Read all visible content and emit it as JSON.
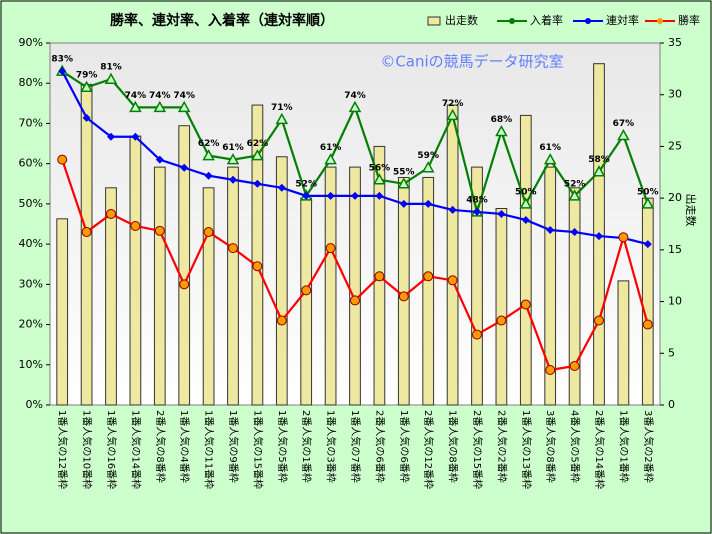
{
  "chart_data": {
    "type": "combo",
    "title": "勝率、連対率、入着率（連対率順）",
    "watermark": "©Caniの競馬データ研究室",
    "y2_label": "出走数",
    "categories": [
      "1番人気の12番枠",
      "1番人気の10番枠",
      "1番人気の16番枠",
      "1番人気の14番枠",
      "2番人気の8番枠",
      "1番人気の4番枠",
      "1番人気の11番枠",
      "1番人気の9番枠",
      "1番人気の15番枠",
      "1番人気の5番枠",
      "2番人気の1番枠",
      "1番人気の3番枠",
      "1番人気の7番枠",
      "2番人気の6番枠",
      "1番人気の6番枠",
      "2番人気の12番枠",
      "1番人気の8番枠",
      "2番人気の15番枠",
      "2番人気の2番枠",
      "1番人気の13番枠",
      "3番人気の8番枠",
      "4番人気の5番枠",
      "2番人気の14番枠",
      "1番人気の1番枠",
      "3番人気の2番枠"
    ],
    "series": [
      {
        "name": "出走数",
        "type": "bar",
        "axis": "y2",
        "color": "#eee8a0",
        "values": [
          18,
          31,
          21,
          26,
          23,
          27,
          21,
          23,
          29,
          24,
          20,
          23,
          23,
          25,
          22,
          22,
          29,
          23,
          19,
          28,
          23,
          21,
          33,
          12,
          20
        ]
      },
      {
        "name": "入着率",
        "type": "line",
        "marker": "triangle",
        "color": "#008000",
        "values": [
          83,
          79,
          81,
          74,
          74,
          74,
          62,
          61,
          62,
          71,
          52,
          61,
          74,
          56,
          55,
          59,
          72,
          48,
          68,
          50,
          61,
          52,
          58,
          67,
          50
        ],
        "value_labels": [
          "83%",
          "79%",
          "81%",
          "74%",
          "74%",
          "74%",
          "62%",
          "61%",
          "62%",
          "71%",
          "52%",
          "61%",
          "74%",
          "56%",
          "55%",
          "59%",
          "72%",
          "48%",
          "68%",
          "50%",
          "61%",
          "52%",
          "58%",
          "67%",
          "50%"
        ]
      },
      {
        "name": "連対率",
        "type": "line",
        "marker": "diamond",
        "color": "#0000ff",
        "values": [
          83,
          71.4,
          66.7,
          66.7,
          61,
          59,
          57,
          56,
          55,
          54,
          52,
          52,
          52,
          52,
          50,
          50,
          48.5,
          48,
          47.5,
          46,
          43.5,
          43,
          42,
          41.5,
          40
        ]
      },
      {
        "name": "勝率",
        "type": "line",
        "marker": "circle",
        "color": "#ff0000",
        "values": [
          61,
          43,
          47.5,
          44.5,
          43.3,
          30,
          43,
          39,
          34.5,
          21,
          28.5,
          39,
          26,
          32,
          27,
          32,
          31,
          17.5,
          21,
          25,
          8.7,
          9.7,
          21,
          41.7,
          20
        ]
      }
    ],
    "ylim": [
      0,
      90
    ],
    "yticks": [
      {
        "value": 0,
        "label": "0%"
      },
      {
        "value": 10,
        "label": "10%"
      },
      {
        "value": 20,
        "label": "20%"
      },
      {
        "value": 30,
        "label": "30%"
      },
      {
        "value": 40,
        "label": "40%"
      },
      {
        "value": 50,
        "label": "50%"
      },
      {
        "value": 60,
        "label": "60%"
      },
      {
        "value": 70,
        "label": "70%"
      },
      {
        "value": 80,
        "label": "80%"
      },
      {
        "value": 90,
        "label": "90%"
      }
    ],
    "y2lim": [
      0,
      35
    ],
    "y2ticks": [
      0,
      5,
      10,
      15,
      20,
      25,
      30,
      35
    ]
  }
}
